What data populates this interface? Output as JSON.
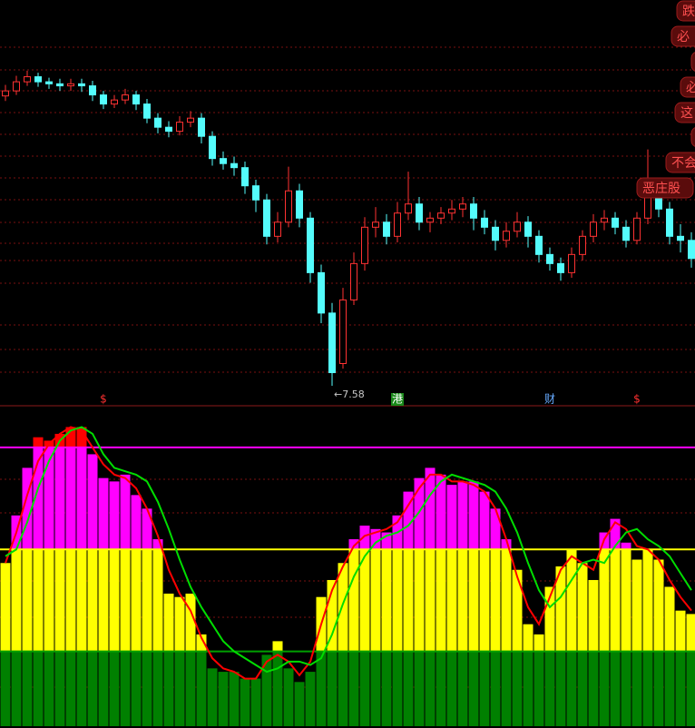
{
  "chart_data": [
    {
      "type": "candlestick",
      "open": [
        10.45,
        10.5,
        10.59,
        10.64,
        10.59,
        10.57,
        10.55,
        10.57,
        10.55,
        10.46,
        10.37,
        10.41,
        10.46,
        10.37,
        10.23,
        10.14,
        10.1,
        10.19,
        10.23,
        10.05,
        9.83,
        9.78,
        9.74,
        9.56,
        9.42,
        9.06,
        9.2,
        9.51,
        9.24,
        8.7,
        8.3,
        7.8,
        8.43,
        8.79,
        9.15,
        9.2,
        9.06,
        9.29,
        9.38,
        9.2,
        9.24,
        9.29,
        9.33,
        9.38,
        9.24,
        9.15,
        9.02,
        9.11,
        9.2,
        9.06,
        8.88,
        8.79,
        8.7,
        8.88,
        9.06,
        9.2,
        9.24,
        9.15,
        9.02,
        9.24,
        9.51,
        9.33,
        9.06,
        9.02
      ],
      "high": [
        10.56,
        10.65,
        10.7,
        10.68,
        10.63,
        10.62,
        10.62,
        10.62,
        10.6,
        10.5,
        10.46,
        10.52,
        10.5,
        10.42,
        10.28,
        10.2,
        10.25,
        10.3,
        10.28,
        10.1,
        9.9,
        9.85,
        9.8,
        9.62,
        9.48,
        9.3,
        9.75,
        9.58,
        9.3,
        8.78,
        8.4,
        8.55,
        8.9,
        9.25,
        9.35,
        9.28,
        9.4,
        9.7,
        9.45,
        9.3,
        9.35,
        9.42,
        9.45,
        9.45,
        9.32,
        9.22,
        9.2,
        9.3,
        9.26,
        9.12,
        8.95,
        8.85,
        8.95,
        9.12,
        9.28,
        9.32,
        9.3,
        9.22,
        9.3,
        9.92,
        9.58,
        9.4,
        9.18,
        9.1
      ],
      "low": [
        10.4,
        10.46,
        10.55,
        10.54,
        10.52,
        10.5,
        10.5,
        10.49,
        10.4,
        10.32,
        10.33,
        10.37,
        10.31,
        10.18,
        10.08,
        10.04,
        10.06,
        10.14,
        9.98,
        9.76,
        9.72,
        9.66,
        9.48,
        9.3,
        8.98,
        9.0,
        9.15,
        9.15,
        8.6,
        8.2,
        7.58,
        7.75,
        8.38,
        8.72,
        9.05,
        8.98,
        9.0,
        9.22,
        9.12,
        9.1,
        9.18,
        9.22,
        9.25,
        9.12,
        9.08,
        8.92,
        8.95,
        9.05,
        8.95,
        8.8,
        8.72,
        8.62,
        8.65,
        8.82,
        9.0,
        9.12,
        9.08,
        8.95,
        8.98,
        9.18,
        9.25,
        8.98,
        8.9,
        8.75
      ],
      "close": [
        10.5,
        10.59,
        10.64,
        10.59,
        10.57,
        10.55,
        10.57,
        10.55,
        10.46,
        10.37,
        10.41,
        10.46,
        10.37,
        10.23,
        10.14,
        10.1,
        10.19,
        10.23,
        10.05,
        9.83,
        9.78,
        9.74,
        9.56,
        9.42,
        9.06,
        9.2,
        9.51,
        9.24,
        8.7,
        8.3,
        7.71,
        8.43,
        8.79,
        9.15,
        9.2,
        9.06,
        9.29,
        9.38,
        9.2,
        9.24,
        9.29,
        9.33,
        9.38,
        9.24,
        9.15,
        9.02,
        9.11,
        9.2,
        9.06,
        8.88,
        8.79,
        8.7,
        8.88,
        9.06,
        9.2,
        9.24,
        9.15,
        9.02,
        9.24,
        9.51,
        9.33,
        9.06,
        9.02,
        8.84
      ],
      "ylim": [
        7.4,
        11.4
      ],
      "up_color": "#ff3232",
      "down_color": "#54fcfc",
      "annotation": "←7.58",
      "markers": [
        "$",
        "港",
        "财",
        "$"
      ]
    },
    {
      "type": "bar",
      "values": [
        46,
        60,
        74,
        83,
        82,
        84,
        86,
        86,
        78,
        71,
        70,
        72,
        66,
        62,
        53,
        37,
        36,
        37,
        25,
        15,
        14,
        14,
        12,
        12,
        19,
        23,
        15,
        11,
        14,
        36,
        41,
        46,
        53,
        57,
        56,
        55,
        60,
        67,
        71,
        74,
        72,
        69,
        70,
        70,
        67,
        62,
        53,
        44,
        28,
        25,
        39,
        45,
        50,
        46,
        41,
        55,
        59,
        52,
        47,
        50,
        47,
        39,
        32,
        31
      ],
      "ylim": [
        -2,
        92
      ],
      "reference_lines": [
        {
          "value": 20,
          "color": "#00a000"
        },
        {
          "value": 50,
          "color": "#ffff00"
        },
        {
          "value": 80,
          "color": "#ff00ff"
        }
      ],
      "band_colors": [
        "#008000",
        "#ffff00",
        "#ff00ff",
        "#ff0000"
      ],
      "series": [
        {
          "color": "#ff0000",
          "values": [
            46,
            55,
            66,
            76,
            81,
            84,
            86,
            85,
            80,
            75,
            72,
            71,
            68,
            62,
            54,
            44,
            37,
            32,
            24,
            18,
            15,
            14,
            12,
            12,
            17,
            19,
            17,
            13,
            17,
            28,
            38,
            45,
            51,
            54,
            55,
            56,
            58,
            63,
            68,
            72,
            72,
            70,
            70,
            69,
            67,
            62,
            53,
            42,
            33,
            28,
            36,
            44,
            48,
            46,
            44,
            53,
            58,
            56,
            51,
            50,
            47,
            41,
            36,
            32
          ]
        },
        {
          "color": "#00dd00",
          "values": [
            48,
            50,
            58,
            68,
            76,
            82,
            85,
            86,
            84,
            78,
            74,
            73,
            72,
            70,
            64,
            56,
            47,
            39,
            33,
            28,
            23,
            20,
            18,
            16,
            14,
            15,
            17,
            17,
            16,
            18,
            25,
            34,
            42,
            48,
            52,
            54,
            55,
            57,
            61,
            66,
            70,
            72,
            71,
            70,
            69,
            67,
            62,
            55,
            46,
            38,
            33,
            36,
            41,
            46,
            47,
            46,
            51,
            55,
            56,
            53,
            51,
            48,
            43,
            38
          ]
        }
      ]
    }
  ],
  "buttons": [
    "跌",
    "必",
    "必",
    "这",
    "不会",
    "恶庄股"
  ]
}
